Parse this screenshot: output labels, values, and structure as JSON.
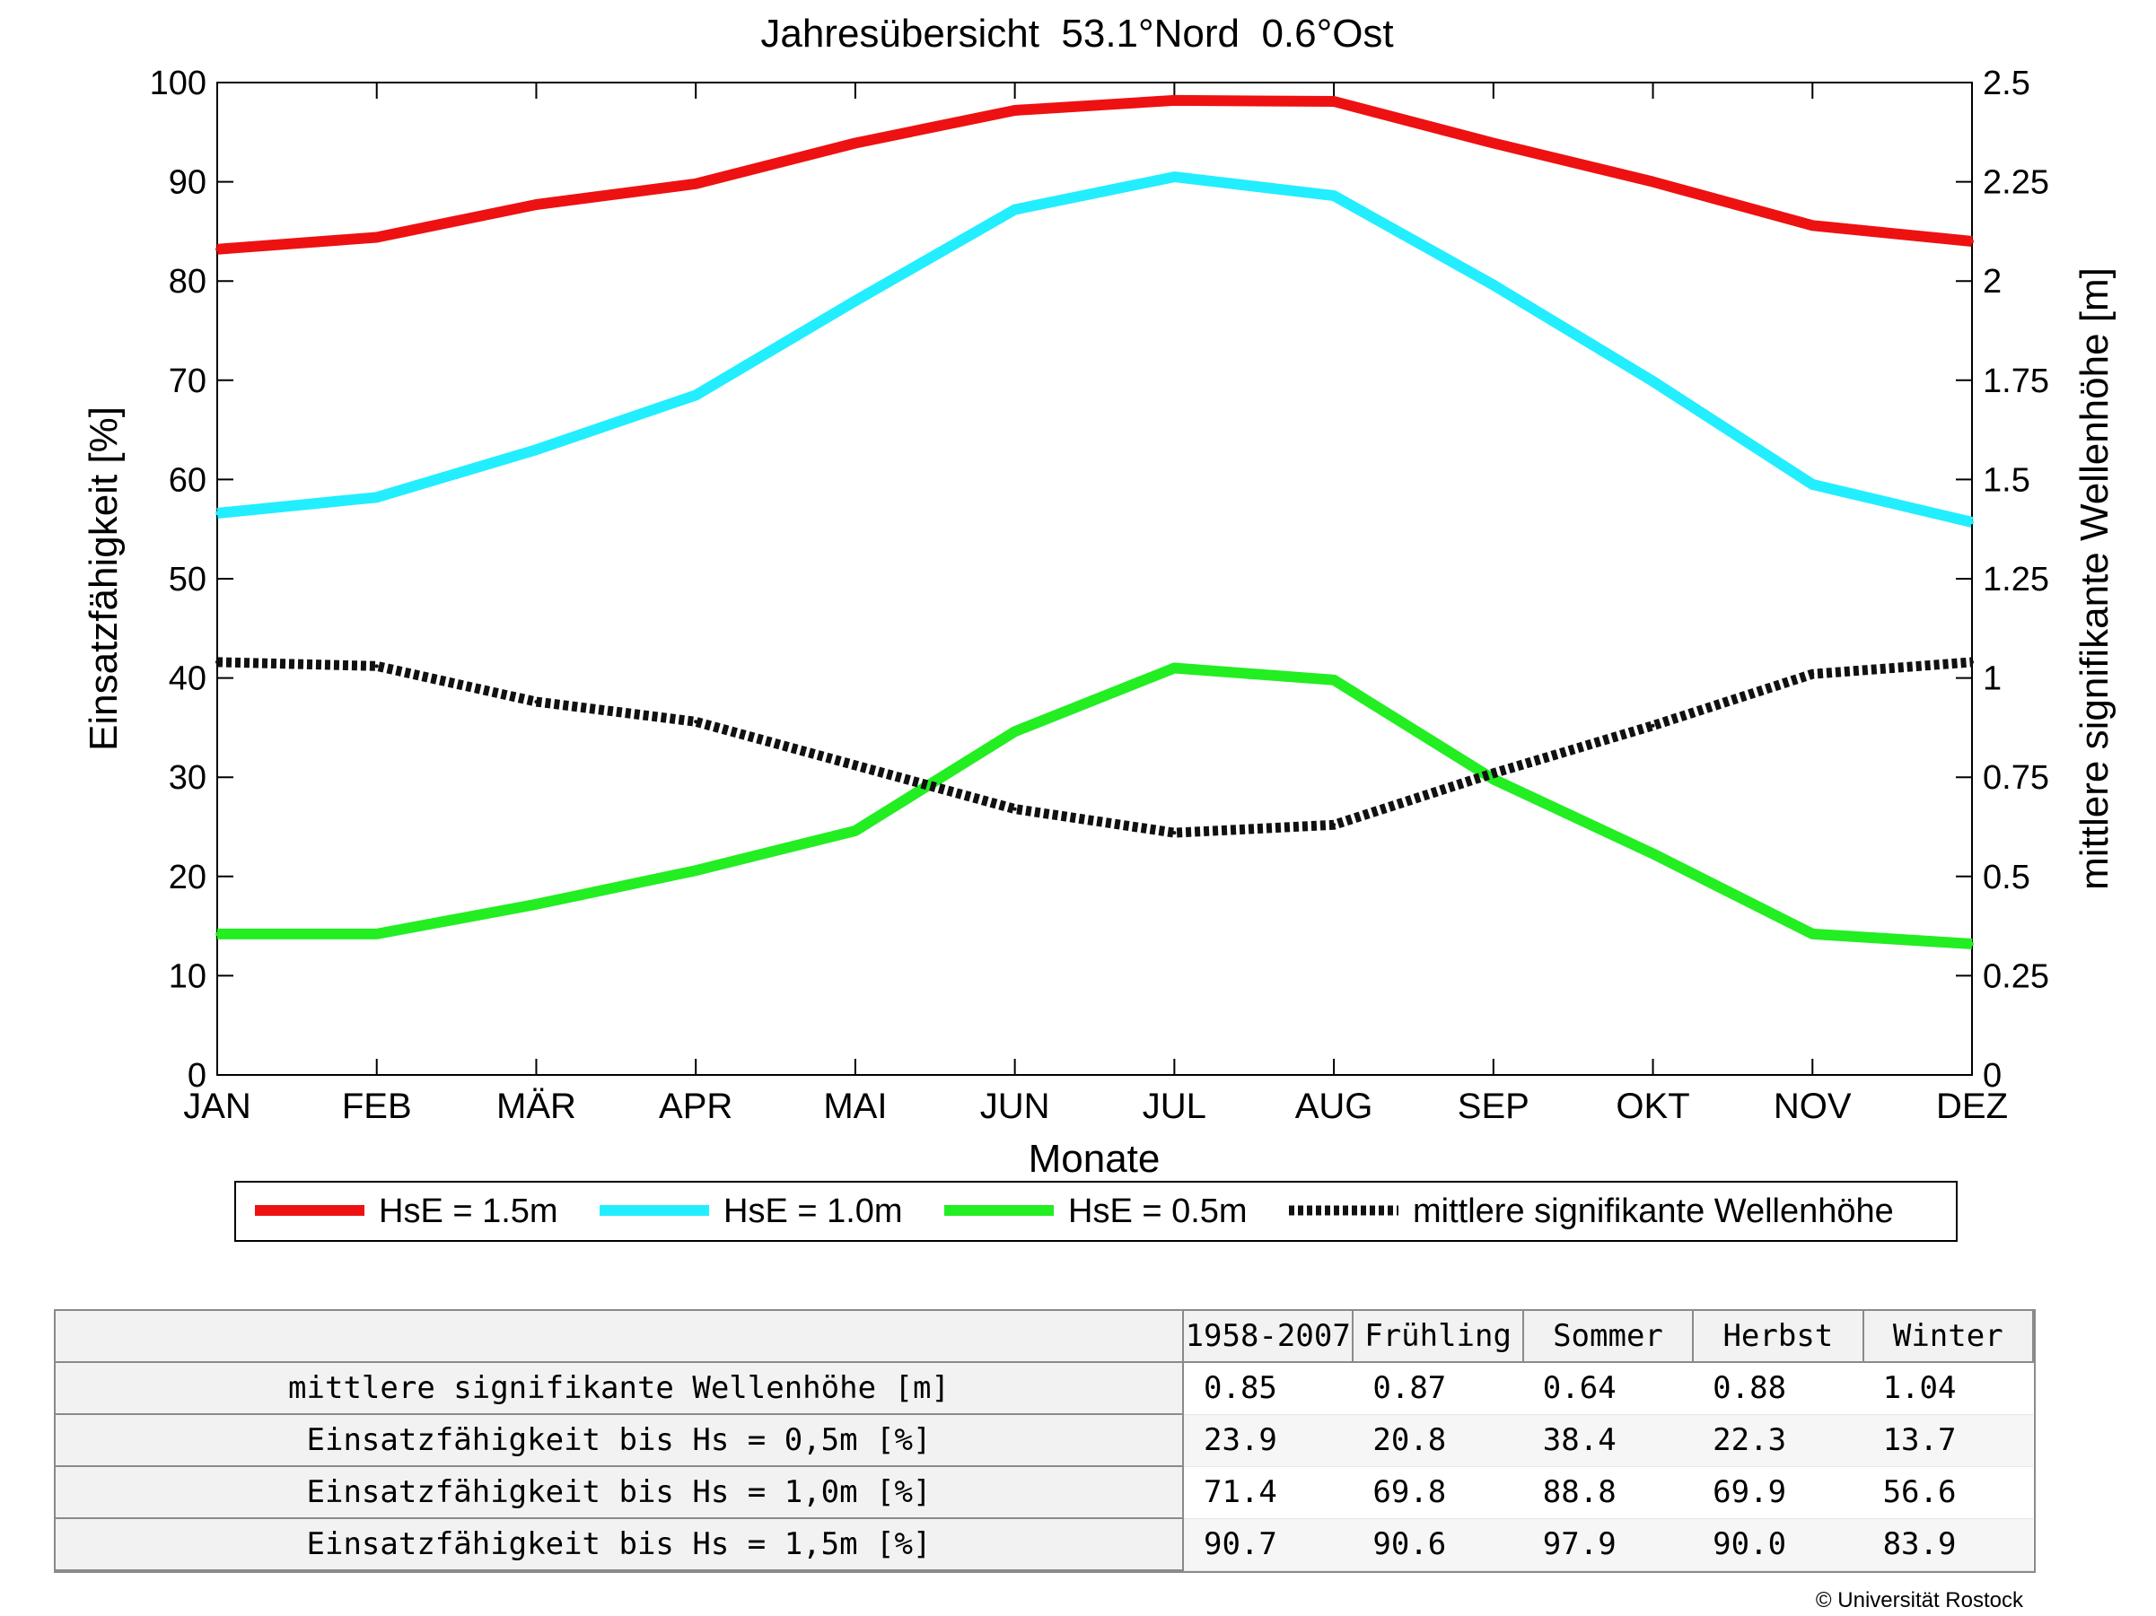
{
  "chart_data": {
    "type": "line",
    "title": "Jahresübersicht  53.1°Nord  0.6°Ost",
    "xlabel": "Monate",
    "ylabel": "Einsatzfähigkeit [%]",
    "y2label": "mittlere signifikante Wellenhöhe [m]",
    "categories": [
      "JAN",
      "FEB",
      "MÄR",
      "APR",
      "MAI",
      "JUN",
      "JUL",
      "AUG",
      "SEP",
      "OKT",
      "NOV",
      "DEZ"
    ],
    "ylim": [
      0,
      100
    ],
    "yticks": [
      "0",
      "10",
      "20",
      "30",
      "40",
      "50",
      "60",
      "70",
      "80",
      "90",
      "100"
    ],
    "y2lim": [
      0,
      2.5
    ],
    "y2ticks": [
      "0",
      "0.25",
      "0.5",
      "0.75",
      "1",
      "1.25",
      "1.5",
      "1.75",
      "2",
      "2.25",
      "2.5"
    ],
    "grid": false,
    "legend_position": "bottom",
    "series": [
      {
        "name": "HsE = 1.5m",
        "axis": "left",
        "color": "#ee1111",
        "style": "solid",
        "values": [
          83.2,
          84.4,
          87.7,
          89.8,
          93.9,
          97.2,
          98.2,
          98.1,
          93.9,
          90.0,
          85.6,
          84.0
        ]
      },
      {
        "name": "HsE = 1.0m",
        "axis": "left",
        "color": "#22eeff",
        "style": "solid",
        "values": [
          56.6,
          58.2,
          63.0,
          68.5,
          78.0,
          87.2,
          90.5,
          88.6,
          79.6,
          69.9,
          59.5,
          55.7
        ]
      },
      {
        "name": "HsE = 0.5m",
        "axis": "left",
        "color": "#22ee22",
        "style": "solid",
        "values": [
          14.2,
          14.2,
          17.2,
          20.6,
          24.6,
          34.6,
          41.0,
          39.8,
          29.8,
          22.3,
          14.2,
          13.2
        ]
      },
      {
        "name": "mittlere signifikante Wellenhöhe",
        "axis": "right",
        "color": "#111111",
        "style": "dotted",
        "values": [
          1.04,
          1.03,
          0.94,
          0.89,
          0.78,
          0.67,
          0.61,
          0.63,
          0.76,
          0.88,
          1.01,
          1.04
        ]
      }
    ]
  },
  "table": {
    "header": [
      "",
      "1958-2007",
      "Frühling",
      "Sommer",
      "Herbst",
      "Winter"
    ],
    "rows": [
      {
        "label": "mittlere signifikante Wellenhöhe [m]",
        "values": [
          "0.85",
          "0.87",
          "0.64",
          "0.88",
          "1.04"
        ]
      },
      {
        "label": "Einsatzfähigkeit bis Hs = 0,5m [%]",
        "values": [
          "23.9",
          "20.8",
          "38.4",
          "22.3",
          "13.7"
        ]
      },
      {
        "label": "Einsatzfähigkeit bis Hs = 1,0m [%]",
        "values": [
          "71.4",
          "69.8",
          "88.8",
          "69.9",
          "56.6"
        ]
      },
      {
        "label": "Einsatzfähigkeit bis Hs = 1,5m [%]",
        "values": [
          "90.7",
          "90.6",
          "97.9",
          "90.0",
          "83.9"
        ]
      }
    ]
  },
  "copyright": "© Universität Rostock"
}
